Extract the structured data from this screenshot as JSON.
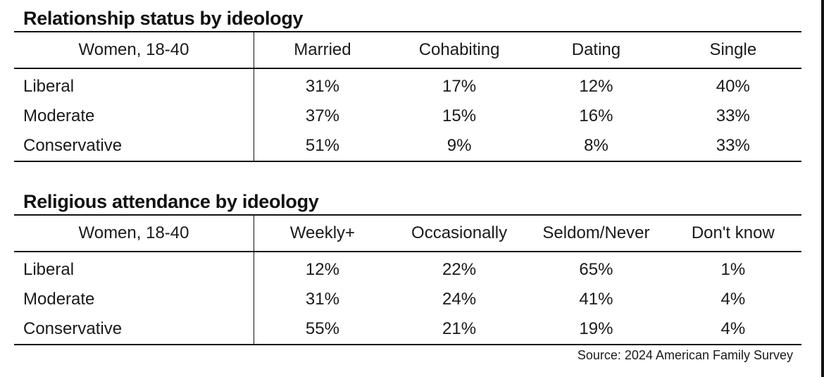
{
  "chart_data": [
    {
      "type": "table",
      "title": "Relationship status by ideology",
      "group_label": "Women, 18-40",
      "columns": [
        "Married",
        "Cohabiting",
        "Dating",
        "Single"
      ],
      "rows": [
        {
          "label": "Liberal",
          "values": [
            "31%",
            "17%",
            "12%",
            "40%"
          ]
        },
        {
          "label": "Moderate",
          "values": [
            "37%",
            "15%",
            "16%",
            "33%"
          ]
        },
        {
          "label": "Conservative",
          "values": [
            "51%",
            "9%",
            "8%",
            "33%"
          ]
        }
      ]
    },
    {
      "type": "table",
      "title": "Religious attendance by ideology",
      "group_label": "Women, 18-40",
      "columns": [
        "Weekly+",
        "Occasionally",
        "Seldom/Never",
        "Don't know"
      ],
      "rows": [
        {
          "label": "Liberal",
          "values": [
            "12%",
            "22%",
            "65%",
            "1%"
          ]
        },
        {
          "label": "Moderate",
          "values": [
            "31%",
            "24%",
            "41%",
            "4%"
          ]
        },
        {
          "label": "Conservative",
          "values": [
            "55%",
            "21%",
            "19%",
            "4%"
          ]
        }
      ]
    }
  ],
  "source": "Source: 2024 American Family Survey"
}
